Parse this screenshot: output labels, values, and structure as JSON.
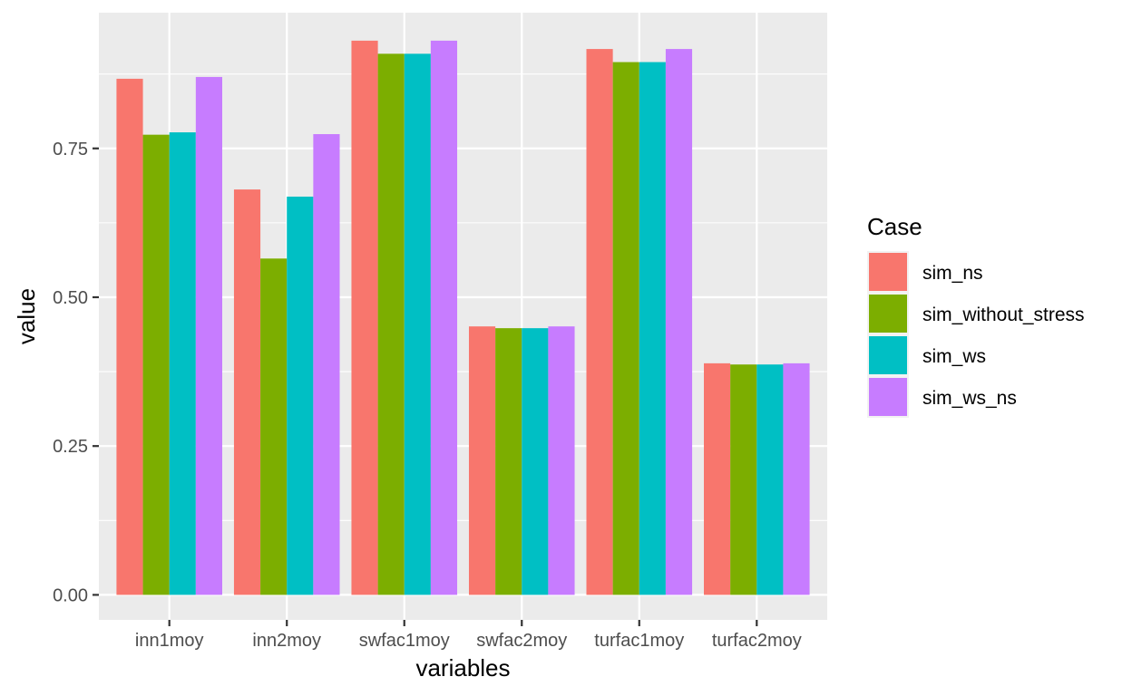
{
  "chart_data": {
    "type": "bar",
    "xlabel": "variables",
    "ylabel": "value",
    "categories": [
      "inn1moy",
      "inn2moy",
      "swfac1moy",
      "swfac2moy",
      "turfac1moy",
      "turfac2moy"
    ],
    "series": [
      {
        "name": "sim_ns",
        "color": "#F8766D",
        "values": [
          0.867,
          0.681,
          0.931,
          0.451,
          0.917,
          0.389
        ]
      },
      {
        "name": "sim_without_stress",
        "color": "#7CAE00",
        "values": [
          0.773,
          0.565,
          0.909,
          0.448,
          0.895,
          0.387
        ]
      },
      {
        "name": "sim_ws",
        "color": "#00BFC4",
        "values": [
          0.777,
          0.669,
          0.909,
          0.448,
          0.895,
          0.387
        ]
      },
      {
        "name": "sim_ws_ns",
        "color": "#C77CFF",
        "values": [
          0.87,
          0.774,
          0.931,
          0.451,
          0.917,
          0.389
        ]
      }
    ],
    "ylim": [
      -0.042,
      0.978
    ],
    "yticks": [
      0,
      0.25,
      0.5,
      0.75
    ],
    "ytick_labels": [
      "0.00",
      "0.25",
      "0.50",
      "0.75"
    ],
    "grid": true,
    "legend": {
      "title": "Case",
      "position": "right"
    },
    "panel_background": "#EBEBEB",
    "grid_color": "#FFFFFF"
  }
}
